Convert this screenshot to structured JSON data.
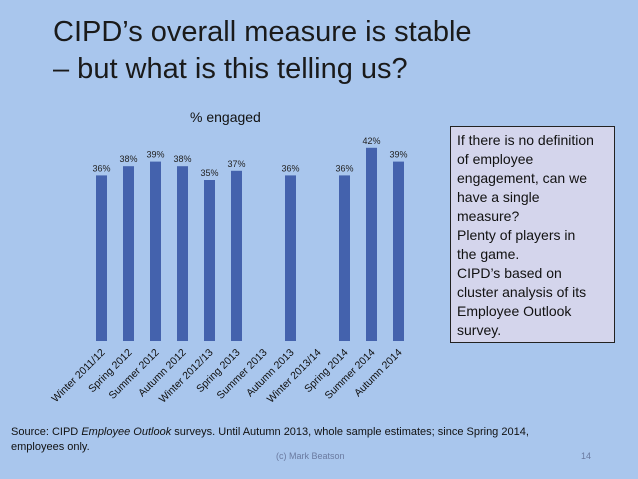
{
  "slide": {
    "title_line1": "CIPD’s overall measure is stable",
    "title_line2": "– but what is this telling us?"
  },
  "chart_data": {
    "type": "bar",
    "title": "% engaged",
    "categories": [
      "Winter 2011/12",
      "Spring 2012",
      "Summer 2012",
      "Autumn 2012",
      "Winter 2012/13",
      "Spring 2013",
      "Summer 2013",
      "Autumn 2013",
      "Winter 2013/14",
      "Spring 2014",
      "Summer 2014",
      "Autumn 2014"
    ],
    "values": [
      36,
      38,
      39,
      38,
      35,
      37,
      null,
      36,
      null,
      36,
      42,
      39
    ],
    "labels": [
      "36%",
      "38%",
      "39%",
      "38%",
      "35%",
      "37%",
      "",
      "36%",
      "",
      "36%",
      "42%",
      "39%"
    ],
    "bar_color": "#4462ad"
  },
  "callout": {
    "lines": [
      "If there is no definition",
      "of employee",
      "engagement, can we",
      "have a single",
      "measure?",
      "Plenty of players in",
      "the game.",
      "CIPD’s based on",
      "cluster analysis of its",
      "Employee Outlook",
      "survey."
    ]
  },
  "source": {
    "prefix": "Source: CIPD ",
    "italic": "Employee Outlook",
    "suffix": " surveys.  Until Autumn 2013, whole sample estimates; since Spring 2014,",
    "line2": "employees only."
  },
  "footer": {
    "credit": "(c) Mark Beatson",
    "page": "14"
  }
}
